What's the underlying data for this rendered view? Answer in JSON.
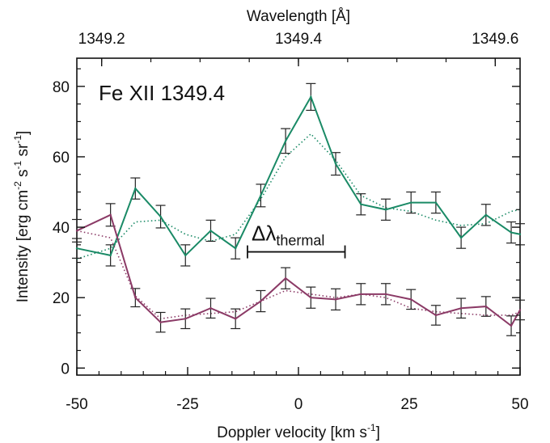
{
  "chart_data": {
    "type": "line",
    "title": "",
    "annotation": "Fe XII 1349.4",
    "xlabel": "Doppler velocity [km s",
    "xlabel_sup": "-1",
    "xlabel_tail": "]",
    "ylabel_parts": [
      {
        "t": "Intensity [erg cm"
      },
      {
        "t": "-2",
        "sup": true
      },
      {
        "t": " s"
      },
      {
        "t": "-1",
        "sup": true
      },
      {
        "t": " sr"
      },
      {
        "t": "-1",
        "sup": true
      },
      {
        "t": "]"
      }
    ],
    "top_axis_label": "Wavelength [Å]",
    "top_ticks": [
      {
        "label": "1349.2",
        "at_velocity": -44.4
      },
      {
        "label": "1349.4",
        "at_velocity": 0
      },
      {
        "label": "1349.6",
        "at_velocity": 44.4
      }
    ],
    "xlim": [
      -50,
      50
    ],
    "ylim": [
      -2,
      88
    ],
    "x_ticks": [
      -50,
      -25,
      0,
      25,
      50
    ],
    "x_tick_labels": [
      "-50",
      "-25",
      "0",
      "25",
      "50"
    ],
    "y_ticks": [
      0,
      20,
      40,
      60,
      80
    ],
    "y_tick_labels": [
      "0",
      "20",
      "40",
      "60",
      "80"
    ],
    "thermal_bar": {
      "label": "Δλ",
      "label_sub": "thermal",
      "x_start": -11.5,
      "x_end": 10.5,
      "y": 33
    },
    "x": [
      -50,
      -42.4,
      -36.8,
      -31.1,
      -25.5,
      -19.8,
      -14.2,
      -8.5,
      -2.9,
      2.8,
      8.4,
      14.1,
      19.7,
      25.4,
      31.0,
      36.7,
      42.3,
      48.0,
      50
    ],
    "series": [
      {
        "color": "#1a8a66",
        "values": [
          34,
          32,
          51,
          43,
          32,
          39,
          34,
          49,
          64.5,
          77,
          58,
          46.5,
          45,
          47,
          47,
          37,
          43.5,
          38.5,
          38
        ],
        "errors": [
          2.8,
          3,
          3,
          3.2,
          3,
          3,
          3,
          3.2,
          3.5,
          3.8,
          3.2,
          3,
          3,
          3,
          3,
          3,
          3,
          3,
          3
        ],
        "fit": [
          31,
          34,
          41.5,
          42,
          38,
          36,
          38,
          48,
          60,
          66.5,
          59,
          49,
          45.5,
          44.5,
          42,
          40.5,
          41,
          44.5,
          45
        ]
      },
      {
        "color": "#8b3a66",
        "values": [
          39,
          43.5,
          20,
          13,
          14,
          17,
          14,
          19,
          25.5,
          20,
          19.5,
          21,
          21,
          19.5,
          15,
          17,
          17.5,
          12,
          16.5
        ],
        "errors": [
          3.2,
          3.2,
          2.6,
          2.8,
          2.8,
          2.8,
          2.8,
          3,
          3,
          3,
          3,
          3,
          3,
          2.8,
          2.8,
          2.8,
          2.8,
          2.8,
          2.8
        ],
        "fit": [
          39,
          37,
          20.5,
          14,
          15,
          15.5,
          16,
          19,
          22,
          21,
          20,
          21,
          20,
          17,
          16,
          15.5,
          15,
          15,
          16
        ]
      }
    ],
    "grid": false,
    "legend": "none"
  }
}
